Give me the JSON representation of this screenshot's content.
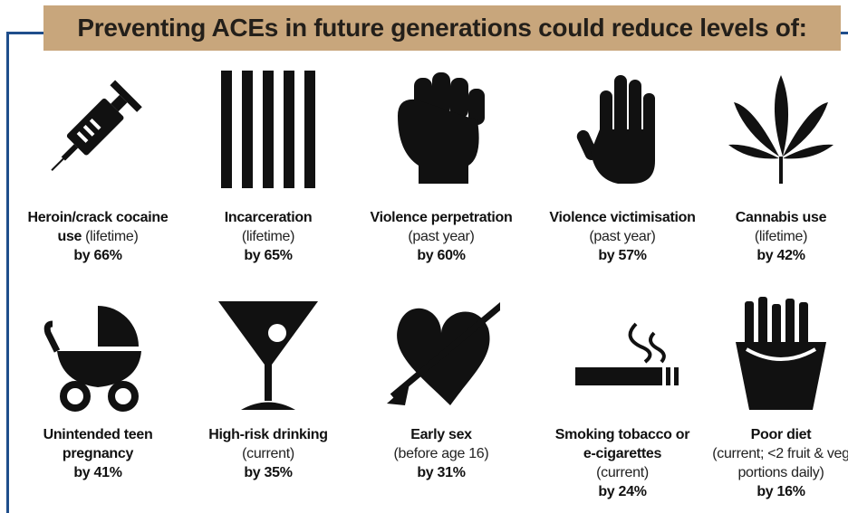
{
  "header": {
    "title": "Preventing ACEs in future generations could reduce levels of:"
  },
  "items": [
    {
      "lines": [
        [
          {
            "text": "Heroin/crack cocaine",
            "style": "bold"
          }
        ],
        [
          {
            "text": "use",
            "style": "bold"
          },
          {
            "text": "(lifetime)",
            "style": "regular"
          }
        ]
      ],
      "reduction": "by 66%"
    },
    {
      "lines": [
        [
          {
            "text": "Incarceration",
            "style": "bold"
          }
        ],
        [
          {
            "text": "(lifetime)",
            "style": "regular"
          }
        ]
      ],
      "reduction": "by 65%"
    },
    {
      "lines": [
        [
          {
            "text": "Violence perpetration",
            "style": "bold"
          }
        ],
        [
          {
            "text": "(past year)",
            "style": "regular"
          }
        ]
      ],
      "reduction": "by 60%"
    },
    {
      "lines": [
        [
          {
            "text": "Violence victimisation",
            "style": "bold"
          }
        ],
        [
          {
            "text": "(past year)",
            "style": "regular"
          }
        ]
      ],
      "reduction": "by 57%"
    },
    {
      "lines": [
        [
          {
            "text": "Cannabis use",
            "style": "bold"
          }
        ],
        [
          {
            "text": "(lifetime)",
            "style": "regular"
          }
        ]
      ],
      "reduction": "by 42%"
    },
    {
      "lines": [
        [
          {
            "text": "Unintended teen",
            "style": "bold"
          }
        ],
        [
          {
            "text": "pregnancy",
            "style": "bold"
          }
        ]
      ],
      "reduction": "by 41%"
    },
    {
      "lines": [
        [
          {
            "text": "High-risk drinking",
            "style": "bold"
          }
        ],
        [
          {
            "text": "(current)",
            "style": "regular"
          }
        ]
      ],
      "reduction": "by 35%"
    },
    {
      "lines": [
        [
          {
            "text": "Early sex",
            "style": "bold"
          }
        ],
        [
          {
            "text": "(before age 16)",
            "style": "regular"
          }
        ]
      ],
      "reduction": "by 31%"
    },
    {
      "lines": [
        [
          {
            "text": "Smoking tobacco or",
            "style": "bold"
          }
        ],
        [
          {
            "text": "e-cigarettes",
            "style": "bold"
          }
        ],
        [
          {
            "text": "(current)",
            "style": "regular"
          }
        ]
      ],
      "reduction": "by 24%"
    },
    {
      "lines": [
        [
          {
            "text": "Poor diet",
            "style": "bold"
          }
        ],
        [
          {
            "text": "(current; <2 fruit & veg",
            "style": "regular"
          }
        ],
        [
          {
            "text": "portions daily)",
            "style": "regular"
          }
        ]
      ],
      "reduction": "by 16%"
    }
  ]
}
